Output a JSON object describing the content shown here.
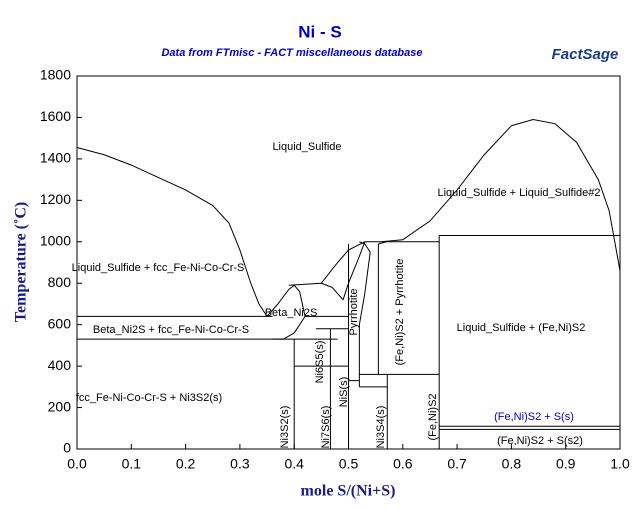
{
  "chart_data": {
    "type": "line",
    "title": "Ni - S",
    "subtitle": "Data from FTmisc - FACT miscellaneous database",
    "logo": "FactSage",
    "xlabel": "mole S/(Ni+S)",
    "ylabel": "Temperature (˚C)",
    "xlim": [
      0,
      1
    ],
    "ylim": [
      0,
      1800
    ],
    "xticks": [
      {
        "value": 0,
        "label": "0.0"
      },
      0.1,
      0.2,
      0.3,
      0.4,
      0.5,
      0.6,
      0.7,
      0.8,
      0.9,
      {
        "value": 1,
        "label": "1.0"
      }
    ],
    "yticks": [
      0,
      200,
      400,
      600,
      800,
      1000,
      1200,
      1400,
      1600,
      1800
    ],
    "line_color": "#000000",
    "series": [
      {
        "x": [
          0,
          0.05,
          0.1,
          0.15,
          0.2,
          0.25,
          0.28,
          0.3,
          0.32,
          0.335,
          0.35
        ],
        "values": [
          1455,
          1420,
          1370,
          1310,
          1250,
          1175,
          1090,
          960,
          800,
          700,
          640
        ]
      },
      {
        "x": [
          0,
          0.36
        ],
        "values": [
          640,
          640
        ]
      },
      {
        "x": [
          0,
          0.48
        ],
        "values": [
          530,
          530
        ]
      },
      {
        "x": [
          0.35,
          0.37,
          0.39,
          0.4,
          0.41,
          0.42,
          0.4,
          0.38,
          0.36
        ],
        "values": [
          640,
          700,
          770,
          790,
          760,
          640,
          560,
          530,
          530
        ]
      },
      {
        "x": [
          0.39,
          0.45,
          0.47,
          0.49
        ],
        "values": [
          790,
          800,
          780,
          720
        ]
      },
      {
        "x": [
          0.42,
          0.5
        ],
        "values": [
          640,
          640
        ]
      },
      {
        "x": [
          0.45,
          0.48,
          0.5,
          0.53,
          0.56,
          0.6
        ],
        "values": [
          800,
          900,
          960,
          1000,
          1000,
          1010
        ]
      },
      {
        "x": [
          0.49,
          0.5,
          0.52,
          0.53
        ],
        "values": [
          720,
          800,
          930,
          1000
        ]
      },
      {
        "x": [
          0.52,
          0.53,
          0.535,
          0.54,
          0.53,
          0.52
        ],
        "values": [
          600,
          750,
          850,
          950,
          990,
          1000
        ]
      },
      {
        "x": [
          0.555,
          0.57,
          0.667
        ],
        "values": [
          990,
          1000,
          1000
        ]
      },
      {
        "x": [
          0.6,
          0.65,
          0.7,
          0.75,
          0.8,
          0.84,
          0.88,
          0.92,
          0.96,
          0.98,
          1.0
        ],
        "values": [
          1010,
          1100,
          1250,
          1420,
          1560,
          1590,
          1570,
          1480,
          1300,
          1150,
          860
        ]
      },
      {
        "x": [
          0.667,
          1.0
        ],
        "values": [
          1030,
          1030
        ]
      },
      {
        "x": [
          0.4,
          0.4
        ],
        "values": [
          0,
          530
        ]
      },
      {
        "x": [
          0.4667,
          0.4667
        ],
        "values": [
          0,
          580
        ]
      },
      {
        "x": [
          0.4,
          0.5
        ],
        "values": [
          400,
          400
        ]
      },
      {
        "x": [
          0.44,
          0.5
        ],
        "values": [
          580,
          580
        ]
      },
      {
        "x": [
          0.5,
          0.5
        ],
        "values": [
          0,
          990
        ]
      },
      {
        "x": [
          0.52,
          0.52
        ],
        "values": [
          300,
          600
        ]
      },
      {
        "x": [
          0.5,
          0.52
        ],
        "values": [
          330,
          330
        ]
      },
      {
        "x": [
          0.52,
          0.5714
        ],
        "values": [
          300,
          300
        ]
      },
      {
        "x": [
          0.5714,
          0.5714
        ],
        "values": [
          0,
          360
        ]
      },
      {
        "x": [
          0.52,
          0.667
        ],
        "values": [
          360,
          360
        ]
      },
      {
        "x": [
          0.555,
          0.555
        ],
        "values": [
          360,
          990
        ]
      },
      {
        "x": [
          0.667,
          0.667
        ],
        "values": [
          0,
          1030
        ]
      },
      {
        "x": [
          0.667,
          1.0
        ],
        "values": [
          110,
          110
        ]
      },
      {
        "x": [
          0.667,
          1.0
        ],
        "values": [
          95,
          95
        ]
      }
    ],
    "annotations": [
      "Liquid_Sulfide",
      "Liquid_Sulfide + Liquid_Sulfide#2",
      "Liquid_Sulfide + fcc_Fe-Ni-Co-Cr-S",
      "Beta_Ni2S",
      "Beta_Ni2S + fcc_Fe-Ni-Co-Cr-S",
      "Pyrrhotite",
      "(Fe,Ni)S2 + Pyrrhotite",
      "Liquid_Sulfide + (Fe,Ni)S2",
      "Ni6S5(s)",
      "fcc_Fe-Ni-Co-Cr-S + Ni3S2(s)",
      "Ni3S2(s)",
      "Ni7S6(s)",
      "NiS(s)",
      "Ni3S4(s)",
      "(Fe,Ni)S2",
      "(Fe,Ni)S2 + S(s)",
      "(Fe,Ni)S2 + S(s2)"
    ]
  }
}
